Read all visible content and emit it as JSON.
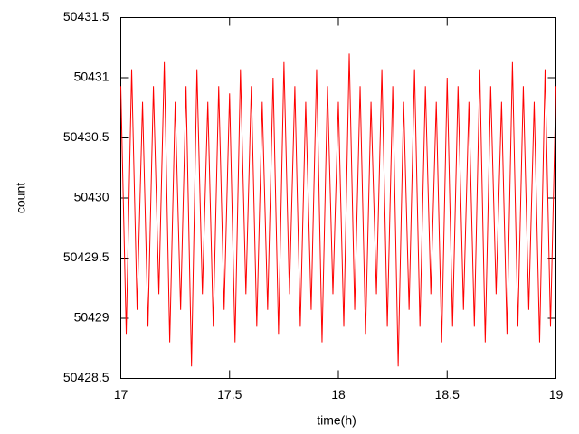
{
  "chart_data": {
    "type": "line",
    "xlabel": "time(h)",
    "ylabel": "count",
    "x": [
      17,
      17.025,
      17.05,
      17.075,
      17.1,
      17.125,
      17.15,
      17.175,
      17.2,
      17.225,
      17.25,
      17.275,
      17.3,
      17.325,
      17.35,
      17.375,
      17.4,
      17.425,
      17.45,
      17.475,
      17.5,
      17.525,
      17.55,
      17.575,
      17.6,
      17.625,
      17.65,
      17.675,
      17.7,
      17.725,
      17.75,
      17.775,
      17.8,
      17.825,
      17.85,
      17.875,
      17.9,
      17.925,
      17.95,
      17.975,
      18,
      18.025,
      18.05,
      18.075,
      18.1,
      18.125,
      18.15,
      18.175,
      18.2,
      18.225,
      18.25,
      18.275,
      18.3,
      18.325,
      18.35,
      18.375,
      18.4,
      18.425,
      18.45,
      18.475,
      18.5,
      18.525,
      18.55,
      18.575,
      18.6,
      18.625,
      18.65,
      18.675,
      18.7,
      18.725,
      18.75,
      18.775,
      18.8,
      18.825,
      18.85,
      18.875,
      18.9,
      18.925,
      18.95,
      18.975,
      19
    ],
    "series": [
      {
        "name": "count",
        "color": "#ff0000",
        "values": [
          50430.93,
          50428.87,
          50431.07,
          50429.07,
          50430.8,
          50428.93,
          50430.93,
          50429.2,
          50431.13,
          50428.8,
          50430.8,
          50429.07,
          50430.93,
          50428.6,
          50431.07,
          50429.2,
          50430.8,
          50428.93,
          50430.93,
          50429.07,
          50430.87,
          50428.8,
          50431.07,
          50429.2,
          50430.93,
          50428.93,
          50430.8,
          50429.07,
          50431,
          50428.87,
          50431.13,
          50429.2,
          50430.93,
          50428.93,
          50430.8,
          50429.07,
          50431.07,
          50428.8,
          50430.93,
          50429.2,
          50430.8,
          50428.93,
          50431.2,
          50429.07,
          50430.93,
          50428.87,
          50430.8,
          50429.2,
          50431.07,
          50428.93,
          50430.93,
          50428.6,
          50430.8,
          50429.07,
          50431.07,
          50428.93,
          50430.93,
          50429.2,
          50430.8,
          50428.8,
          50431,
          50428.93,
          50430.93,
          50429.07,
          50430.8,
          50428.93,
          50431.07,
          50428.8,
          50430.93,
          50429.2,
          50430.8,
          50428.87,
          50431.13,
          50428.93,
          50430.93,
          50429.07,
          50430.8,
          50428.8,
          50431.07,
          50428.93,
          50430.93
        ]
      }
    ],
    "xlim": [
      17,
      19
    ],
    "xticks": [
      17,
      17.5,
      18,
      18.5,
      19
    ],
    "ylim": [
      50428.5,
      50431.5
    ],
    "yticks": [
      50428.5,
      50429,
      50429.5,
      50430,
      50430.5,
      50431,
      50431.5
    ],
    "grid": false
  }
}
